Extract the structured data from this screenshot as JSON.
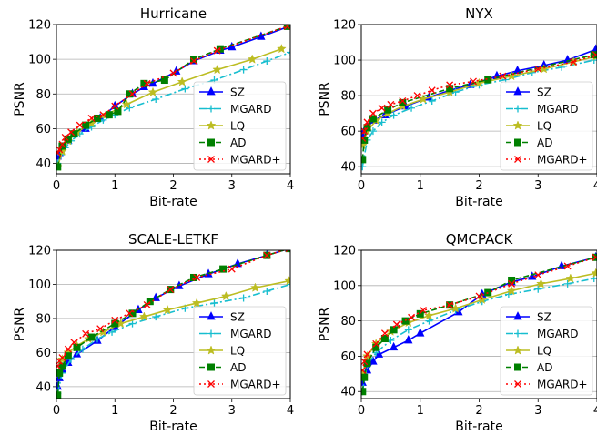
{
  "figure": {
    "xlabel": "Bit-rate",
    "ylabel": "PSNR"
  },
  "legend": {
    "placement": "lower-right",
    "entries": [
      {
        "name": "SZ",
        "color": "#0000ff",
        "marker": "triangle",
        "linestyle": "solid"
      },
      {
        "name": "MGARD",
        "color": "#17becf",
        "marker": "plus",
        "linestyle": "dashdot"
      },
      {
        "name": "LQ",
        "color": "#bcbd22",
        "marker": "star",
        "linestyle": "solid"
      },
      {
        "name": "AD",
        "color": "#008000",
        "marker": "square",
        "linestyle": "dashed"
      },
      {
        "name": "MGARD+",
        "color": "#ff0000",
        "marker": "x",
        "linestyle": "dotted"
      }
    ]
  },
  "chart_data": [
    {
      "type": "line",
      "title": "Hurricane",
      "xlabel": "Bit-rate",
      "ylabel": "PSNR",
      "xlim": [
        0,
        4
      ],
      "ylim": [
        34,
        120
      ],
      "xticks": [
        0,
        1,
        2,
        3,
        4
      ],
      "yticks": [
        40,
        60,
        80,
        100,
        120
      ],
      "grid": "y",
      "legend": "lower-right",
      "series": [
        {
          "name": "SZ",
          "x": [
            0.02,
            0.05,
            0.1,
            0.2,
            0.3,
            0.5,
            0.75,
            1.0,
            1.3,
            1.5,
            1.65,
            2.05,
            2.35,
            2.8,
            3.0,
            3.5,
            3.98
          ],
          "y": [
            44,
            46,
            49,
            53,
            57,
            60,
            66,
            73,
            80,
            84,
            86,
            93,
            99,
            105,
            107,
            113,
            119
          ]
        },
        {
          "name": "MGARD",
          "x": [
            0.02,
            0.08,
            0.15,
            0.25,
            0.4,
            0.6,
            0.8,
            1.0,
            1.25,
            1.7,
            2.2,
            2.7,
            3.2,
            3.6,
            4.0
          ],
          "y": [
            40,
            45,
            49,
            53,
            57,
            61,
            65,
            68,
            72,
            77,
            83,
            88,
            94,
            99,
            104
          ]
        },
        {
          "name": "LQ",
          "x": [
            0.02,
            0.1,
            0.2,
            0.35,
            0.6,
            0.85,
            1.2,
            1.65,
            2.15,
            2.75,
            3.35,
            3.85
          ],
          "y": [
            38,
            47,
            53,
            58,
            63,
            68,
            74,
            81,
            87,
            94,
            100,
            106
          ]
        },
        {
          "name": "AD",
          "x": [
            0.02,
            0.1,
            0.2,
            0.3,
            0.5,
            0.7,
            0.9,
            1.05,
            1.25,
            1.5,
            1.85,
            2.35,
            2.8,
            3.95
          ],
          "y": [
            38,
            50,
            54,
            57,
            62,
            66,
            68,
            70,
            80,
            86,
            88,
            100,
            106,
            119
          ]
        },
        {
          "name": "MGARD+",
          "x": [
            0.02,
            0.05,
            0.1,
            0.15,
            0.25,
            0.4,
            0.6,
            0.8,
            1.0,
            1.3,
            1.55,
            2.0,
            2.35,
            2.75,
            3.95
          ],
          "y": [
            46,
            48,
            51,
            55,
            58,
            62,
            66,
            68,
            73,
            80,
            86,
            92,
            99,
            105,
            119
          ]
        }
      ]
    },
    {
      "type": "line",
      "title": "NYX",
      "xlabel": "Bit-rate",
      "ylabel": "PSNR",
      "xlim": [
        0,
        4
      ],
      "ylim": [
        36,
        120
      ],
      "xticks": [
        0,
        1,
        2,
        3,
        4
      ],
      "yticks": [
        40,
        60,
        80,
        100,
        120
      ],
      "grid": "y",
      "legend": "lower-right",
      "series": [
        {
          "name": "SZ",
          "x": [
            0.02,
            0.05,
            0.1,
            0.2,
            0.4,
            0.75,
            1.15,
            1.5,
            1.85,
            2.3,
            2.65,
            3.1,
            3.5,
            3.98
          ],
          "y": [
            58,
            60,
            62,
            66,
            69,
            74,
            79,
            83,
            86,
            91,
            94,
            97,
            100,
            106
          ]
        },
        {
          "name": "MGARD",
          "x": [
            0.02,
            0.1,
            0.2,
            0.35,
            0.55,
            0.85,
            1.2,
            1.6,
            2.0,
            2.45,
            2.9,
            3.4,
            3.95
          ],
          "y": [
            40,
            55,
            60,
            65,
            69,
            73,
            77,
            82,
            86,
            89,
            93,
            96,
            100
          ]
        },
        {
          "name": "LQ",
          "x": [
            0.02,
            0.1,
            0.25,
            0.45,
            0.7,
            1.05,
            1.5,
            2.0,
            2.55,
            3.1,
            3.6,
            3.98
          ],
          "y": [
            52,
            60,
            66,
            70,
            74,
            78,
            82,
            87,
            91,
            95,
            99,
            102
          ]
        },
        {
          "name": "AD",
          "x": [
            0.02,
            0.05,
            0.1,
            0.2,
            0.45,
            0.7,
            1.5,
            2.15,
            3.95
          ],
          "y": [
            44,
            55,
            62,
            67,
            72,
            76,
            84,
            89,
            103
          ]
        },
        {
          "name": "MGARD+",
          "x": [
            0.02,
            0.05,
            0.1,
            0.2,
            0.35,
            0.5,
            0.7,
            0.95,
            1.2,
            1.5,
            1.9,
            2.4,
            3.0,
            3.6,
            3.98
          ],
          "y": [
            56,
            60,
            65,
            70,
            73,
            75,
            77,
            80,
            83,
            86,
            88,
            91,
            95,
            99,
            103
          ]
        }
      ]
    },
    {
      "type": "line",
      "title": "SCALE-LETKF",
      "xlabel": "Bit-rate",
      "ylabel": "PSNR",
      "xlim": [
        0,
        4
      ],
      "ylim": [
        33,
        120
      ],
      "xticks": [
        0,
        1,
        2,
        3,
        4
      ],
      "yticks": [
        40,
        60,
        80,
        100,
        120
      ],
      "grid": "y",
      "legend": "lower-right",
      "series": [
        {
          "name": "SZ",
          "x": [
            0.02,
            0.05,
            0.1,
            0.2,
            0.35,
            0.7,
            1.0,
            1.4,
            1.7,
            2.1,
            2.6,
            3.1,
            3.6,
            3.98
          ],
          "y": [
            40,
            45,
            50,
            54,
            59,
            67,
            75,
            85,
            92,
            99,
            106,
            112,
            117,
            121
          ]
        },
        {
          "name": "MGARD",
          "x": [
            0.02,
            0.1,
            0.25,
            0.45,
            0.7,
            0.95,
            1.3,
            1.7,
            2.2,
            2.7,
            3.2,
            3.6,
            4.0
          ],
          "y": [
            36,
            48,
            56,
            62,
            68,
            72,
            77,
            81,
            86,
            89,
            92,
            96,
            100
          ]
        },
        {
          "name": "LQ",
          "x": [
            0.02,
            0.1,
            0.2,
            0.35,
            0.55,
            0.8,
            1.1,
            1.5,
            1.9,
            2.4,
            2.9,
            3.4,
            3.98
          ],
          "y": [
            48,
            56,
            60,
            64,
            68,
            72,
            77,
            81,
            85,
            89,
            93,
            98,
            102
          ]
        },
        {
          "name": "AD",
          "x": [
            0.02,
            0.05,
            0.1,
            0.2,
            0.35,
            0.6,
            1.0,
            1.3,
            1.6,
            1.95,
            2.35,
            2.85,
            3.6,
            3.98
          ],
          "y": [
            35,
            48,
            52,
            58,
            63,
            69,
            77,
            83,
            90,
            97,
            104,
            109,
            117,
            121
          ]
        },
        {
          "name": "MGARD+",
          "x": [
            0.02,
            0.05,
            0.1,
            0.2,
            0.3,
            0.5,
            0.75,
            1.0,
            1.25,
            1.55,
            1.95,
            2.4,
            3.0,
            3.6,
            3.98
          ],
          "y": [
            52,
            55,
            57,
            62,
            66,
            71,
            74,
            79,
            83,
            88,
            97,
            104,
            109,
            117,
            121
          ]
        }
      ]
    },
    {
      "type": "line",
      "title": "QMCPACK",
      "xlabel": "Bit-rate",
      "ylabel": "PSNR",
      "xlim": [
        0,
        4
      ],
      "ylim": [
        36,
        120
      ],
      "xticks": [
        0,
        1,
        2,
        3,
        4
      ],
      "yticks": [
        40,
        60,
        80,
        100,
        120
      ],
      "grid": "y",
      "legend": "lower-right",
      "series": [
        {
          "name": "SZ",
          "x": [
            0.02,
            0.1,
            0.2,
            0.3,
            0.55,
            0.8,
            1.0,
            1.65,
            2.05,
            2.55,
            2.9,
            3.4,
            3.98
          ],
          "y": [
            45,
            52,
            57,
            61,
            65,
            69,
            73,
            85,
            95,
            102,
            105,
            111,
            116
          ]
        },
        {
          "name": "MGARD",
          "x": [
            0.02,
            0.1,
            0.25,
            0.5,
            0.8,
            1.15,
            1.6,
            2.05,
            2.5,
            3.0,
            3.5,
            3.95
          ],
          "y": [
            40,
            55,
            62,
            69,
            75,
            80,
            86,
            91,
            95,
            98,
            101,
            104
          ]
        },
        {
          "name": "LQ",
          "x": [
            0.02,
            0.1,
            0.25,
            0.5,
            0.8,
            1.15,
            1.6,
            2.05,
            2.55,
            3.05,
            3.55,
            3.98
          ],
          "y": [
            50,
            60,
            67,
            74,
            79,
            83,
            87,
            92,
            97,
            101,
            104,
            107
          ]
        },
        {
          "name": "AD",
          "x": [
            0.02,
            0.05,
            0.1,
            0.25,
            0.4,
            0.55,
            0.75,
            1.0,
            1.5,
            2.15,
            2.55,
            3.98
          ],
          "y": [
            40,
            48,
            56,
            65,
            70,
            75,
            80,
            84,
            89,
            96,
            103,
            116
          ]
        },
        {
          "name": "MGARD+",
          "x": [
            0.02,
            0.05,
            0.1,
            0.25,
            0.4,
            0.6,
            0.85,
            1.05,
            1.5,
            2.0,
            2.55,
            3.0,
            3.5,
            3.98
          ],
          "y": [
            52,
            57,
            61,
            67,
            73,
            78,
            82,
            86,
            89,
            94,
            101,
            106,
            111,
            116
          ]
        }
      ]
    }
  ]
}
